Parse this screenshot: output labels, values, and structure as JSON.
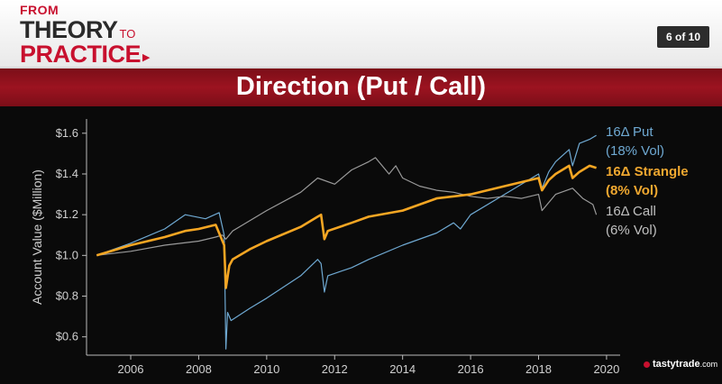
{
  "header": {
    "brand_from": "FROM",
    "brand_theory": "THEORY",
    "brand_to": "TO",
    "brand_practice": "PRACTICE",
    "page_indicator": "6 of 10"
  },
  "slide_title": "Direction (Put / Call)",
  "legend": {
    "put_line1": "16Δ Put",
    "put_line2": "(18% Vol)",
    "strangle_line1": "16Δ Strangle",
    "strangle_line2": "(8% Vol)",
    "call_line1": "16Δ Call",
    "call_line2": "(6% Vol)"
  },
  "logo": {
    "name": "tastytrade",
    "suffix": ".com"
  },
  "colors": {
    "put": "#6fa9d2",
    "strangle": "#f5a623",
    "call": "#9a9a9a",
    "title_bar": "#9c1320",
    "brand_red": "#c8102e"
  },
  "chart_data": {
    "type": "line",
    "ylabel": "Account Value ($Million)",
    "xlabel": "",
    "xlim": [
      2004.7,
      2020.4
    ],
    "ylim": [
      0.51,
      1.67
    ],
    "x_ticks": [
      2006,
      2008,
      2010,
      2012,
      2014,
      2016,
      2018,
      2020
    ],
    "x_tick_labels": [
      "2006",
      "2008",
      "2010",
      "2012",
      "2014",
      "2016",
      "2018",
      "2020"
    ],
    "y_ticks": [
      0.6,
      0.8,
      1.0,
      1.2,
      1.4,
      1.6
    ],
    "y_tick_labels": [
      "$0.6",
      "$0.8",
      "$1.0",
      "$1.2",
      "$1.4",
      "$1.6"
    ],
    "grid": false,
    "legend_position": "right, outside plot",
    "series": [
      {
        "name": "16Δ Put (18% Vol)",
        "x": [
          2005.0,
          2006.0,
          2007.0,
          2007.6,
          2008.2,
          2008.6,
          2008.75,
          2008.8,
          2008.85,
          2008.95,
          2009.5,
          2010.0,
          2011.0,
          2011.5,
          2011.6,
          2011.7,
          2011.8,
          2012.5,
          2013.0,
          2014.0,
          2015.0,
          2015.5,
          2015.7,
          2016.0,
          2017.0,
          2018.0,
          2018.1,
          2018.3,
          2018.5,
          2018.9,
          2019.0,
          2019.2,
          2019.5,
          2019.7
        ],
        "y": [
          1.0,
          1.06,
          1.13,
          1.2,
          1.18,
          1.21,
          1.1,
          0.54,
          0.72,
          0.68,
          0.74,
          0.79,
          0.9,
          0.98,
          0.96,
          0.82,
          0.9,
          0.94,
          0.98,
          1.05,
          1.11,
          1.16,
          1.13,
          1.2,
          1.3,
          1.4,
          1.33,
          1.41,
          1.46,
          1.52,
          1.44,
          1.55,
          1.57,
          1.59
        ]
      },
      {
        "name": "16Δ Strangle (8% Vol)",
        "x": [
          2005.0,
          2006.0,
          2007.0,
          2007.6,
          2008.0,
          2008.5,
          2008.75,
          2008.8,
          2008.9,
          2009.0,
          2009.5,
          2010.0,
          2011.0,
          2011.5,
          2011.6,
          2011.7,
          2011.8,
          2012.5,
          2013.0,
          2014.0,
          2015.0,
          2016.0,
          2017.0,
          2018.0,
          2018.1,
          2018.3,
          2018.5,
          2018.9,
          2019.0,
          2019.2,
          2019.5,
          2019.7
        ],
        "y": [
          1.0,
          1.05,
          1.09,
          1.12,
          1.13,
          1.15,
          1.05,
          0.84,
          0.95,
          0.98,
          1.03,
          1.07,
          1.14,
          1.19,
          1.2,
          1.08,
          1.12,
          1.16,
          1.19,
          1.22,
          1.28,
          1.3,
          1.34,
          1.38,
          1.32,
          1.37,
          1.4,
          1.44,
          1.38,
          1.41,
          1.44,
          1.43
        ]
      },
      {
        "name": "16Δ Call (6% Vol)",
        "x": [
          2005.0,
          2006.0,
          2007.0,
          2008.0,
          2008.5,
          2008.7,
          2008.8,
          2009.0,
          2010.0,
          2011.0,
          2011.5,
          2012.0,
          2012.5,
          2013.0,
          2013.2,
          2013.6,
          2013.8,
          2014.0,
          2014.5,
          2015.0,
          2015.5,
          2016.0,
          2016.5,
          2017.0,
          2017.5,
          2018.0,
          2018.1,
          2018.5,
          2019.0,
          2019.3,
          2019.6,
          2019.7
        ],
        "y": [
          1.0,
          1.02,
          1.05,
          1.07,
          1.09,
          1.1,
          1.08,
          1.12,
          1.22,
          1.31,
          1.38,
          1.35,
          1.42,
          1.46,
          1.48,
          1.4,
          1.44,
          1.38,
          1.34,
          1.32,
          1.31,
          1.29,
          1.28,
          1.29,
          1.28,
          1.3,
          1.22,
          1.3,
          1.33,
          1.28,
          1.25,
          1.2
        ]
      }
    ]
  }
}
